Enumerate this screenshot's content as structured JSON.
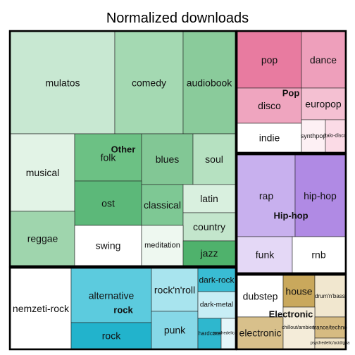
{
  "chart_data": {
    "type": "treemap",
    "title": "Normalized downloads",
    "groups": [
      {
        "name": "Other",
        "leaves": [
          {
            "name": "mulatos",
            "color": "#c8e8d2"
          },
          {
            "name": "comedy",
            "color": "#a4d9b2"
          },
          {
            "name": "audiobook",
            "color": "#8acb9b"
          },
          {
            "name": "musical",
            "color": "#e2f3e6"
          },
          {
            "name": "folk",
            "color": "#6cc184"
          },
          {
            "name": "blues",
            "color": "#82c795"
          },
          {
            "name": "soul",
            "color": "#b6e1c1"
          },
          {
            "name": "ost",
            "color": "#5cb879"
          },
          {
            "name": "classical",
            "color": "#7ec894"
          },
          {
            "name": "latin",
            "color": "#d9f0df"
          },
          {
            "name": "country",
            "color": "#c3e6cc"
          },
          {
            "name": "reggae",
            "color": "#9fd5ad"
          },
          {
            "name": "swing",
            "color": "#ffffff"
          },
          {
            "name": "meditation",
            "color": "#eef8f0"
          },
          {
            "name": "jazz",
            "color": "#4fb26c"
          }
        ]
      },
      {
        "name": "Pop",
        "leaves": [
          {
            "name": "pop",
            "color": "#e87ba0"
          },
          {
            "name": "dance",
            "color": "#ee9fbb"
          },
          {
            "name": "disco",
            "color": "#efa5bf"
          },
          {
            "name": "europop",
            "color": "#f4c0d2"
          },
          {
            "name": "indie",
            "color": "#ffffff"
          },
          {
            "name": "synthpop",
            "color": "#fdf0f4"
          },
          {
            "name": "italo-disco",
            "color": "#fbdbe6"
          }
        ]
      },
      {
        "name": "Hip-hop",
        "leaves": [
          {
            "name": "rap",
            "color": "#c8b0ee"
          },
          {
            "name": "hip-hop",
            "color": "#b08ae4"
          },
          {
            "name": "funk",
            "color": "#e4d8f6"
          },
          {
            "name": "rnb",
            "color": "#ffffff"
          }
        ]
      },
      {
        "name": "rock",
        "leaves": [
          {
            "name": "nemzeti-rock",
            "color": "#ffffff"
          },
          {
            "name": "alternative",
            "color": "#5ccbde"
          },
          {
            "name": "rock",
            "color": "#22b3cc"
          },
          {
            "name": "rock'n'roll",
            "color": "#a8e4ee"
          },
          {
            "name": "punk",
            "color": "#86d8e7"
          },
          {
            "name": "dark-rock",
            "color": "#39bcd3"
          },
          {
            "name": "dark-metal",
            "color": "#c8eef5"
          },
          {
            "name": "hardcore",
            "color": "#2eb7ce"
          },
          {
            "name": "psychedelic-rock",
            "color": "#e4f6f9"
          }
        ]
      },
      {
        "name": "Electronic",
        "leaves": [
          {
            "name": "dubstep",
            "color": "#ffffff"
          },
          {
            "name": "house",
            "color": "#c9a85c"
          },
          {
            "name": "drum'n'bass",
            "color": "#f1e7cf"
          },
          {
            "name": "electronic",
            "color": "#d8c08b"
          },
          {
            "name": "chillout/ambient",
            "color": "#f4ecd9"
          },
          {
            "name": "trance/techno",
            "color": "#d6bb82"
          },
          {
            "name": "psychedelic/acid/goa",
            "color": "#efe3c8"
          }
        ]
      }
    ]
  }
}
